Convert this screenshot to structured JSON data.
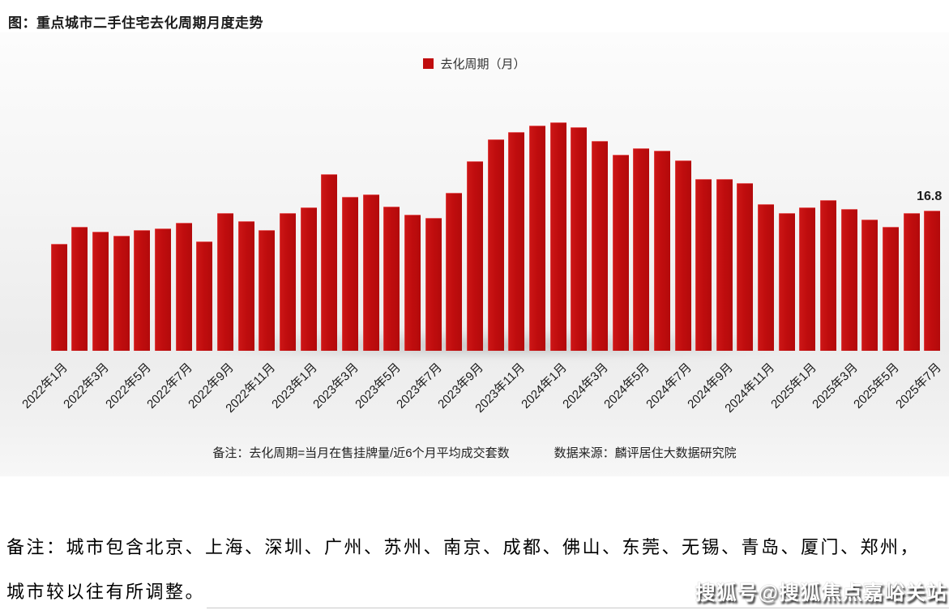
{
  "page": {
    "title": "图：重点城市二手住宅去化周期月度走势",
    "watermark": "搜狐号@搜狐焦点嘉峪关站"
  },
  "chart": {
    "legend_label": "去化周期（月）",
    "note": "备注：去化周期=当月在售挂牌量/近6个月平均成交套数",
    "source": "数据来源：麟评居住大数据研究院",
    "bar_color": "#c00d0e",
    "last_value_label": "16.8"
  },
  "chart_data": {
    "type": "bar",
    "title": "图：重点城市二手住宅去化周期月度走势",
    "legend": [
      "去化周期（月）"
    ],
    "legend_position": "top-center",
    "grid": false,
    "ylim": [
      0,
      30
    ],
    "xlabel": "",
    "ylabel": "去化周期（月）",
    "x_tick_interval": 2,
    "categories": [
      "2022年1月",
      "2022年2月",
      "2022年3月",
      "2022年4月",
      "2022年5月",
      "2022年6月",
      "2022年7月",
      "2022年8月",
      "2022年9月",
      "2022年10月",
      "2022年11月",
      "2022年12月",
      "2023年1月",
      "2023年2月",
      "2023年3月",
      "2023年4月",
      "2023年5月",
      "2023年6月",
      "2023年7月",
      "2023年8月",
      "2023年9月",
      "2023年10月",
      "2023年11月",
      "2023年12月",
      "2024年1月",
      "2024年2月",
      "2024年3月",
      "2024年4月",
      "2024年5月",
      "2024年6月",
      "2024年7月",
      "2024年8月",
      "2024年9月",
      "2024年10月",
      "2024年11月",
      "2024年12月",
      "2025年1月",
      "2025年2月",
      "2025年3月",
      "2025年4月",
      "2025年5月",
      "2025年6月",
      "2025年7月"
    ],
    "values": [
      12.8,
      14.9,
      14.3,
      13.8,
      14.5,
      14.7,
      15.3,
      13.1,
      16.5,
      15.5,
      14.5,
      16.5,
      17.2,
      21.2,
      18.4,
      18.7,
      17.3,
      16.3,
      15.9,
      18.9,
      22.7,
      25.3,
      26.2,
      27.0,
      27.4,
      26.8,
      25.1,
      23.5,
      24.3,
      24.0,
      22.8,
      20.6,
      20.6,
      20.1,
      17.6,
      16.5,
      17.2,
      18.1,
      17.0,
      15.7,
      14.9,
      16.5,
      16.8
    ],
    "annotations": [
      {
        "category": "2025年7月",
        "label": "16.8"
      }
    ],
    "bar_color": "#c00d0e"
  },
  "footnote": {
    "line1": "备注：城市包含北京、上海、深圳、广州、苏州、南京、成都、佛山、东莞、无锡、青岛、厦门、郑州，",
    "line2": "城市较以往有所调整。"
  }
}
